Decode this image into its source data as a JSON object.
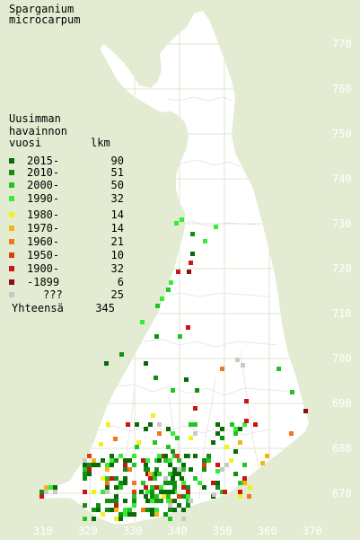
{
  "title_line1": "Sparganium",
  "title_line2": "microcarpum",
  "legend": {
    "heading1": "Uusimman",
    "heading2": "havainnon",
    "heading3_left": "vuosi",
    "heading3_right": "lkm",
    "items": [
      {
        "label": "2015-",
        "count": "90",
        "color": "#0a6a0a"
      },
      {
        "label": "2010-",
        "count": "51",
        "color": "#128f12"
      },
      {
        "label": "2000-",
        "count": "50",
        "color": "#22c522"
      },
      {
        "label": "1990-",
        "count": "32",
        "color": "#33ee33"
      },
      {
        "label": "1980-",
        "count": "14",
        "color": "#f2f21a"
      },
      {
        "label": "1970-",
        "count": "14",
        "color": "#f2b515"
      },
      {
        "label": "1960-",
        "count": "21",
        "color": "#f07818"
      },
      {
        "label": "1950-",
        "count": "10",
        "color": "#e03c12"
      },
      {
        "label": "1900-",
        "count": "32",
        "color": "#cc1414"
      },
      {
        "label": "-1899",
        "count": "6",
        "color": "#8a1010"
      },
      {
        "label": "???",
        "count": "25",
        "color": "#c8c8c8"
      }
    ],
    "total_label": "Yhteensä",
    "total_count": "345"
  },
  "y_axis_labels": [
    "770",
    "760",
    "750",
    "740",
    "730",
    "720",
    "710",
    "700",
    "690",
    "680",
    "670"
  ],
  "x_axis_labels": [
    "310",
    "320",
    "330",
    "340",
    "350",
    "360",
    "370"
  ],
  "colors": {
    "background": "#e3ecd2",
    "land": "#ffffff",
    "grid": "#e6ebda",
    "label": "#ffffff"
  }
}
